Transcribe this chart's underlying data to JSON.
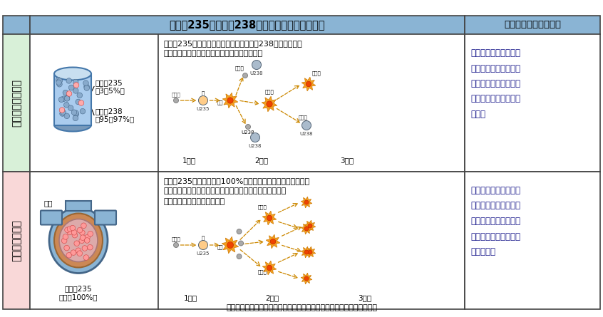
{
  "title": "ウラン235とウラン238の割合と核分裂連鎖反応",
  "col3_header": "核分裂数の制御の方法",
  "row1_label": "原子力発電の場合",
  "row2_label": "原子爆弾の場合",
  "row1_bg": "#d8f0d8",
  "row2_bg": "#f9d8d8",
  "header_bg": "#8ab4d4",
  "border_color": "#444444",
  "row1_desc": "ウラン235の割合が低く、中性子がウラン238に吸収される\n等の理由により核分裂が一定の規模で継続する",
  "row2_desc": "ウラン235の割合がほぼ100%と高いため、中性子が他の物質\nに吸収されず、核分裂が次々に起こり、一瞬のうちに爆発\n的なエネルギーが放出される",
  "row1_control": "制御棒が多数設置され\nており、また自己制御\n性があるため急激に核\n分裂数が増加すること\nはない",
  "row2_control": "制御棒が設置されてお\nらず、自己制御性がな\nいため、急激に増加す\nる核分裂を止めること\nはできない",
  "row1_u235": "ウラン235\n（3〜5%）",
  "row1_u238": "ウラン238\n（95〜97%）",
  "row2_u235": "ウラン235\n（ほぼ100%）",
  "row2_yakkyaku": "火薬",
  "label_1st": "1回目",
  "label_2nd": "2回目",
  "label_3rd": "3回目",
  "footer": "出典：一般財団法人　日本原子力文化財団　原子力・エネルギー図面集",
  "control_color": "#1a1a8c",
  "text_color": "#222222",
  "fig_width": 8.46,
  "fig_height": 4.45,
  "dpi": 100
}
